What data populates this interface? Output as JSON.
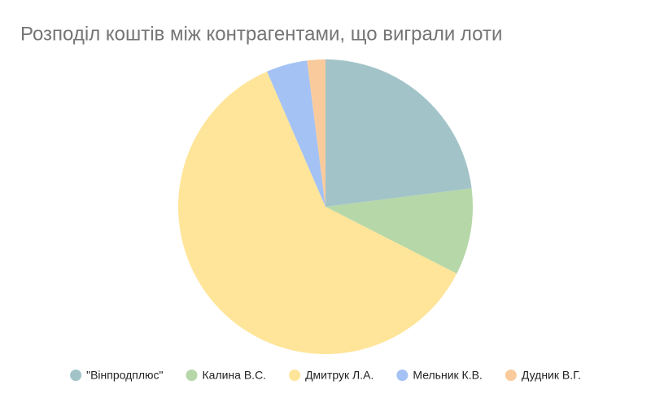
{
  "chart_data": {
    "type": "pie",
    "title": "Розподіл коштів між контрагентами, що виграли лоти",
    "categories": [
      "\"Вінпродплюс\"",
      "Калина В.С.",
      "Дмитрук Л.А.",
      "Мельник К.В.",
      "Дудник В.Г."
    ],
    "values": [
      23,
      9.5,
      61,
      4.5,
      2
    ],
    "colors": [
      "#a2c4c9",
      "#b6d7a8",
      "#ffe599",
      "#a4c2f4",
      "#f9cb9c"
    ],
    "legend": "bottom"
  }
}
